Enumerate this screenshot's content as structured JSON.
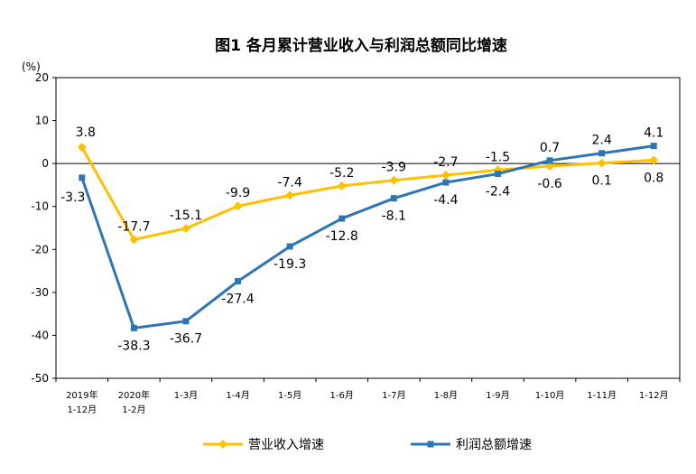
{
  "chart_data": {
    "type": "line",
    "title": "图1  各月累计营业收入与利润总额同比增速",
    "unit_label": "(%)",
    "categories": [
      [
        "2019年",
        "1-12月"
      ],
      [
        "2020年",
        "1-2月"
      ],
      [
        "1-3月"
      ],
      [
        "1-4月"
      ],
      [
        "1-5月"
      ],
      [
        "1-6月"
      ],
      [
        "1-7月"
      ],
      [
        "1-8月"
      ],
      [
        "1-9月"
      ],
      [
        "1-10月"
      ],
      [
        "1-11月"
      ],
      [
        "1-12月"
      ]
    ],
    "ylim": [
      -50,
      20
    ],
    "yticks": [
      20,
      10,
      0,
      -10,
      -20,
      -30,
      -40,
      -50
    ],
    "grid": false,
    "legend_position": "bottom",
    "series": [
      {
        "name": "营业收入增速",
        "color": "#FFC000",
        "marker": "diamond",
        "values": [
          3.8,
          -17.7,
          -15.1,
          -9.9,
          -7.4,
          -5.2,
          -3.9,
          -2.7,
          -1.5,
          -0.6,
          0.1,
          0.8
        ]
      },
      {
        "name": "利润总额增速",
        "color": "#2E75B6",
        "marker": "square",
        "values": [
          -3.3,
          -38.3,
          -36.7,
          -27.4,
          -19.3,
          -12.8,
          -8.1,
          -4.4,
          -2.4,
          0.7,
          2.4,
          4.1
        ]
      }
    ]
  }
}
